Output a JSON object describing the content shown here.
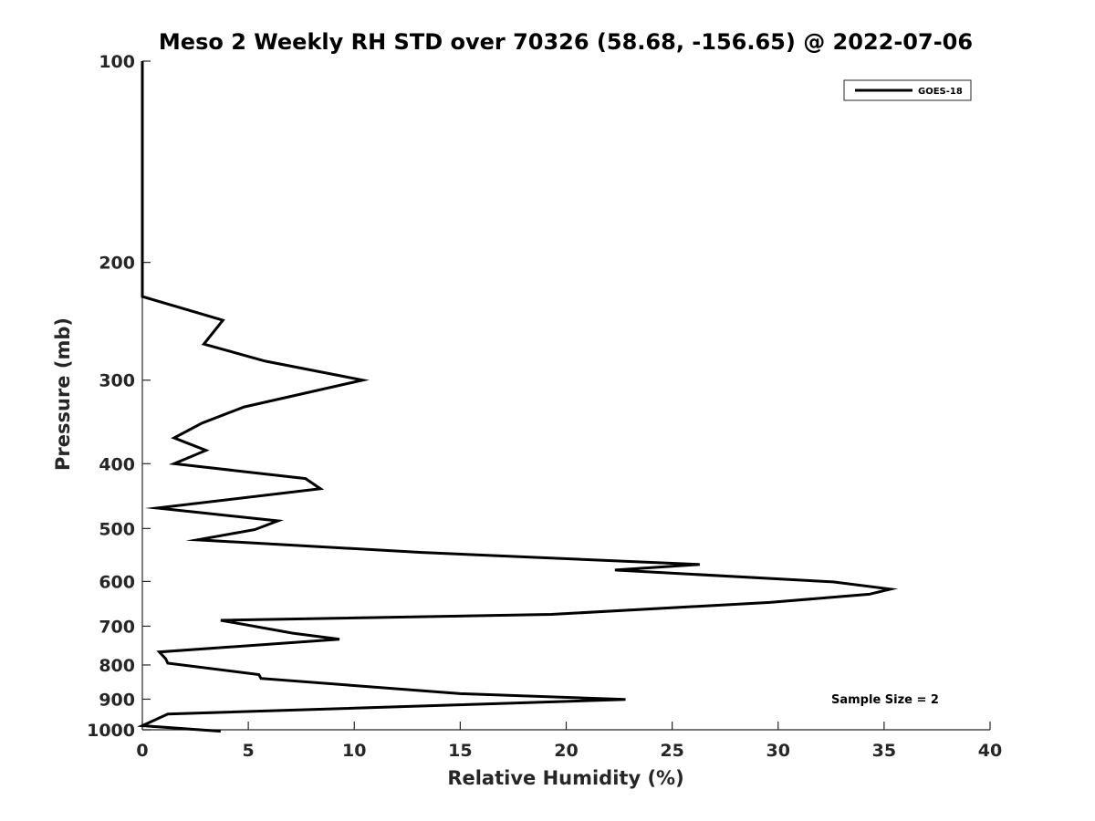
{
  "chart_data": {
    "type": "line",
    "title": "Meso 2 Weekly RH STD over 70326 (58.68, -156.65) @ 2022-07-06",
    "xlabel": "Relative Humidity (%)",
    "ylabel": "Pressure (mb)",
    "xlim": [
      0,
      40
    ],
    "ylim": [
      100,
      1000
    ],
    "yscale": "log",
    "reverse_y": true,
    "grid": false,
    "x_ticks": [
      0,
      5,
      10,
      15,
      20,
      25,
      30,
      35,
      40
    ],
    "x_tick_labels": [
      "0",
      "5",
      "10",
      "15",
      "20",
      "25",
      "30",
      "35",
      "40"
    ],
    "y_ticks": [
      100,
      200,
      300,
      400,
      500,
      600,
      700,
      800,
      900,
      1000
    ],
    "y_tick_labels": [
      "100",
      "200",
      "300",
      "400",
      "500",
      "600",
      "700",
      "800",
      "900",
      "1000"
    ],
    "legend": {
      "position": "top-right",
      "entries": [
        "GOES-18"
      ]
    },
    "annotation": "Sample Size = 2",
    "series": [
      {
        "name": "GOES-18",
        "color": "#000000",
        "points": [
          [
            0,
            100
          ],
          [
            0,
            200
          ],
          [
            0,
            225
          ],
          [
            3.8,
            244
          ],
          [
            2.9,
            265
          ],
          [
            5.8,
            281
          ],
          [
            10.4,
            300
          ],
          [
            4.8,
            329
          ],
          [
            2.8,
            348
          ],
          [
            1.5,
            366
          ],
          [
            3.0,
            382
          ],
          [
            1.5,
            400
          ],
          [
            7.7,
            421
          ],
          [
            8.4,
            436
          ],
          [
            0.7,
            466
          ],
          [
            6.4,
            487
          ],
          [
            5.3,
            502
          ],
          [
            2.6,
            520
          ],
          [
            13.2,
            543
          ],
          [
            26.3,
            566
          ],
          [
            22.3,
            577
          ],
          [
            32.6,
            601
          ],
          [
            35.3,
            616
          ],
          [
            34.3,
            627
          ],
          [
            29.6,
            645
          ],
          [
            19.3,
            672
          ],
          [
            3.7,
            686
          ],
          [
            7.1,
            717
          ],
          [
            9.3,
            732
          ],
          [
            0.8,
            765
          ],
          [
            1.1,
            783
          ],
          [
            1.2,
            795
          ],
          [
            5.5,
            827
          ],
          [
            5.6,
            838
          ],
          [
            15.0,
            883
          ],
          [
            22.8,
            901
          ],
          [
            14.8,
            918
          ],
          [
            1.2,
            947
          ],
          [
            0,
            986
          ],
          [
            3.7,
            1005
          ]
        ]
      }
    ]
  }
}
